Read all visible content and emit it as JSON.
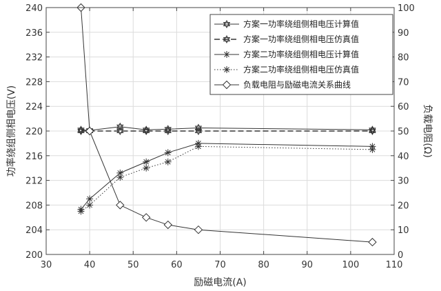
{
  "chart_data": {
    "type": "line",
    "xlabel": "励磁电流(A)",
    "ylabel_left": "功率绕组侧相电压(V)",
    "ylabel_right": "负载电阻(Ω)",
    "xlim": [
      30,
      110
    ],
    "ylim_left": [
      200,
      240
    ],
    "ylim_right": [
      0,
      100
    ],
    "x_ticks": [
      30,
      40,
      50,
      60,
      70,
      80,
      90,
      100,
      110
    ],
    "y_left_ticks": [
      200,
      204,
      208,
      212,
      216,
      220,
      224,
      228,
      232,
      236,
      240
    ],
    "y_right_ticks": [
      0,
      10,
      20,
      30,
      40,
      50,
      60,
      70,
      80,
      90,
      100
    ],
    "grid": true,
    "legend_position": "top-right",
    "series": [
      {
        "name": "方案一功率绕组侧相电压计算值",
        "axis": "left",
        "line": "solid",
        "marker": "hexagram",
        "x": [
          38,
          40,
          47,
          53,
          58,
          65,
          105
        ],
        "y": [
          220.2,
          220.1,
          220.7,
          220.2,
          220.3,
          220.5,
          220.2
        ]
      },
      {
        "name": "方案一功率绕组侧相电压仿真值",
        "axis": "left",
        "line": "dashed",
        "marker": "hexagram",
        "x": [
          38,
          40,
          47,
          53,
          58,
          65,
          105
        ],
        "y": [
          220.0,
          220.0,
          220.0,
          220.0,
          220.0,
          220.0,
          220.0
        ]
      },
      {
        "name": "方案二功率绕组侧相电压计算值",
        "axis": "left",
        "line": "solid",
        "marker": "star",
        "x": [
          38,
          40,
          47,
          53,
          58,
          65,
          105
        ],
        "y": [
          207.3,
          209.0,
          213.2,
          215.0,
          216.5,
          218.0,
          217.5
        ]
      },
      {
        "name": "方案二功率绕组侧相电压仿真值",
        "axis": "left",
        "line": "dotted",
        "marker": "star",
        "x": [
          38,
          40,
          47,
          53,
          58,
          65,
          105
        ],
        "y": [
          207.0,
          208.0,
          212.5,
          214.0,
          215.0,
          217.5,
          217.0
        ]
      },
      {
        "name": "负载电阻与励磁电流关系曲线",
        "axis": "right",
        "line": "solid",
        "marker": "diamond",
        "x": [
          38,
          40,
          47,
          53,
          58,
          65,
          105
        ],
        "y": [
          100,
          50,
          20,
          15,
          12,
          10,
          5
        ]
      }
    ]
  }
}
